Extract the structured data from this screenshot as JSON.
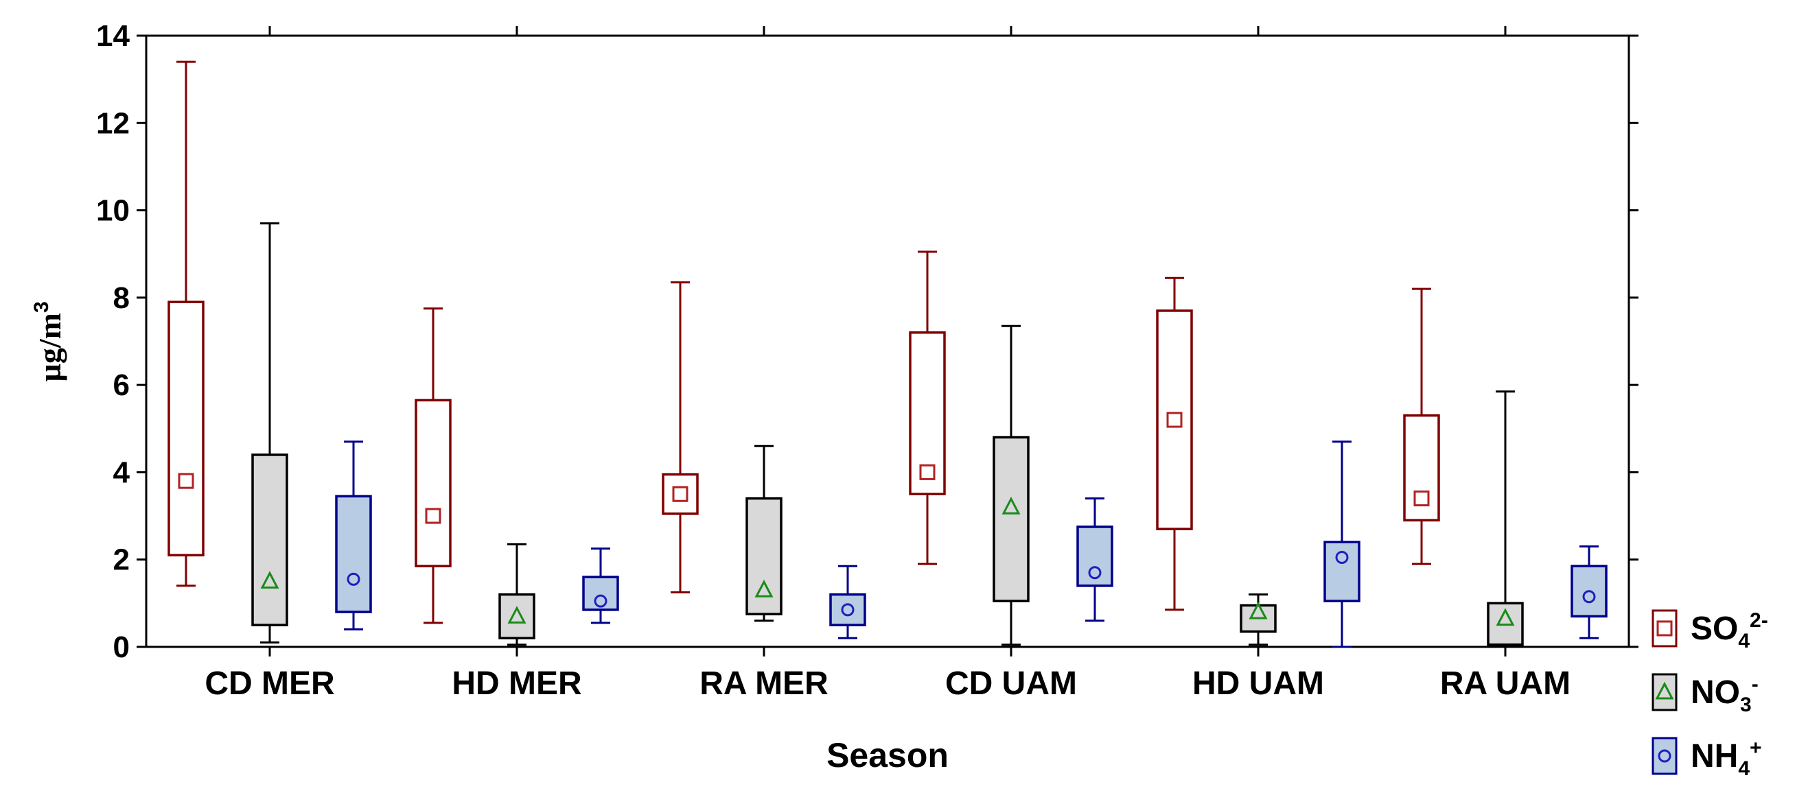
{
  "chart_data": {
    "type": "box",
    "xlabel": "Season",
    "ylabel": "µg/m",
    "ylabel_sup": "3",
    "ylim": [
      0,
      14
    ],
    "yticks": [
      0,
      2,
      4,
      6,
      8,
      10,
      12,
      14
    ],
    "categories": [
      "CD MER",
      "HD MER",
      "RA MER",
      "CD UAM",
      "HD UAM",
      "RA UAM"
    ],
    "series": [
      {
        "name": "SO4 2-",
        "label_base": "SO",
        "label_sub": "4",
        "label_sup": "2-",
        "marker": "square",
        "line_color": "#800000",
        "fill_color": "#ffffff",
        "marker_color": "#b22222",
        "boxes": [
          {
            "min": 1.4,
            "q1": 2.1,
            "median": 3.8,
            "q3": 7.9,
            "max": 13.4
          },
          {
            "min": 0.55,
            "q1": 1.85,
            "median": 3.0,
            "q3": 5.65,
            "max": 7.75
          },
          {
            "min": 1.25,
            "q1": 3.05,
            "median": 3.5,
            "q3": 3.95,
            "max": 8.35
          },
          {
            "min": 1.9,
            "q1": 3.5,
            "median": 4.0,
            "q3": 7.2,
            "max": 9.05
          },
          {
            "min": 0.85,
            "q1": 2.7,
            "median": 5.2,
            "q3": 7.7,
            "max": 8.45
          },
          {
            "min": 1.9,
            "q1": 2.9,
            "median": 3.4,
            "q3": 5.3,
            "max": 8.2
          }
        ]
      },
      {
        "name": "NO3 -",
        "label_base": "NO",
        "label_sub": "3",
        "label_sup": "-",
        "marker": "triangle",
        "line_color": "#000000",
        "fill_color": "#d9d9d9",
        "marker_color": "#1a8a1a",
        "boxes": [
          {
            "min": 0.1,
            "q1": 0.5,
            "median": 1.5,
            "q3": 4.4,
            "max": 9.7
          },
          {
            "min": 0.05,
            "q1": 0.2,
            "median": 0.7,
            "q3": 1.2,
            "max": 2.35
          },
          {
            "min": 0.6,
            "q1": 0.75,
            "median": 1.3,
            "q3": 3.4,
            "max": 4.6
          },
          {
            "min": 0.05,
            "q1": 1.05,
            "median": 3.2,
            "q3": 4.8,
            "max": 7.35
          },
          {
            "min": 0.05,
            "q1": 0.35,
            "median": 0.8,
            "q3": 0.95,
            "max": 1.2
          },
          {
            "min": 0.0,
            "q1": 0.05,
            "median": 0.65,
            "q3": 1.0,
            "max": 5.85
          }
        ]
      },
      {
        "name": "NH4 +",
        "label_base": "NH",
        "label_sub": "4",
        "label_sup": "+",
        "marker": "circle",
        "line_color": "#00008b",
        "fill_color": "#b8cce4",
        "marker_color": "#1f1fbf",
        "boxes": [
          {
            "min": 0.4,
            "q1": 0.8,
            "median": 1.55,
            "q3": 3.45,
            "max": 4.7
          },
          {
            "min": 0.55,
            "q1": 0.85,
            "median": 1.05,
            "q3": 1.6,
            "max": 2.25
          },
          {
            "min": 0.2,
            "q1": 0.5,
            "median": 0.85,
            "q3": 1.2,
            "max": 1.85
          },
          {
            "min": 0.6,
            "q1": 1.4,
            "median": 1.7,
            "q3": 2.75,
            "max": 3.4
          },
          {
            "min": 0.0,
            "q1": 1.05,
            "median": 2.05,
            "q3": 2.4,
            "max": 4.7
          },
          {
            "min": 0.2,
            "q1": 0.7,
            "median": 1.15,
            "q3": 1.85,
            "max": 2.3
          }
        ]
      }
    ]
  }
}
